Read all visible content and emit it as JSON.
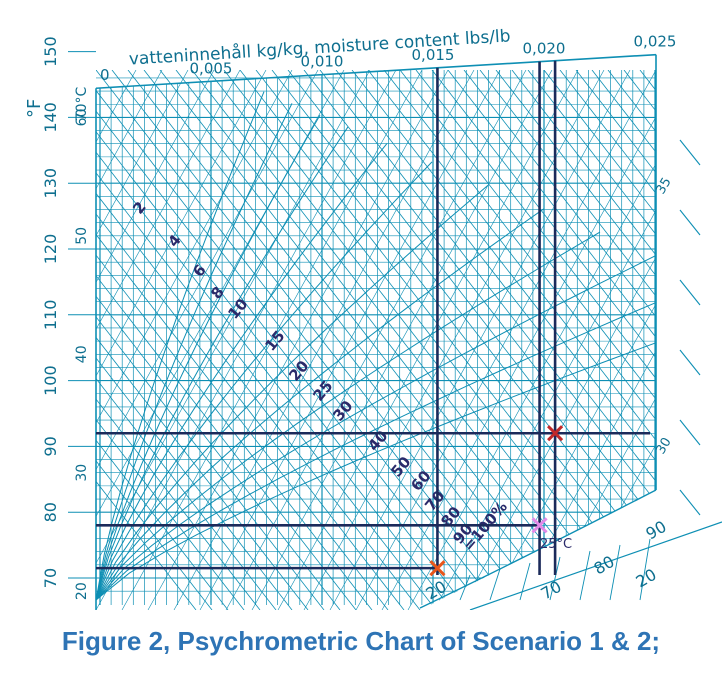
{
  "caption": "Figure 2, Psychrometric Chart of Scenario 1 & 2;",
  "chart_data": {
    "type": "psychrometric",
    "xlabel": "vatteninnehåll kg/kg,  moisture content lbs/lb",
    "x_ticks": [
      "0",
      "0,005",
      "0,010",
      "0,015",
      "0,020",
      "0,025"
    ],
    "xlim": [
      0,
      0.025
    ],
    "ylabel_left": "°F",
    "f_ticks": [
      "70",
      "80",
      "90",
      "100",
      "110",
      "120",
      "130",
      "140",
      "150"
    ],
    "c_ticks": [
      "20",
      "30",
      "40",
      "50",
      "60",
      "70°C"
    ],
    "rh_labels": [
      "2",
      "4",
      "6",
      "8",
      "10",
      "15",
      "20",
      "25",
      "30",
      "40",
      "50",
      "60",
      "70",
      "80",
      "90",
      "=100%"
    ],
    "wet_bulb_label": "25°C",
    "right_labels": [
      "35",
      "30"
    ],
    "bottom_right_labels": [
      "90",
      "80",
      "70",
      "20",
      "20"
    ],
    "colors": {
      "grid": "#0e8fb4",
      "marker_lines": "#1b2a5a",
      "caption": "#2e74b5",
      "point_1": "#e8561b",
      "point_2": "#e28ae8",
      "point_3": "#c0282a"
    },
    "vertical_lines": [
      0.0152,
      0.0198,
      0.0205
    ],
    "horizontal_lines_F": [
      71.5,
      78,
      92
    ],
    "points": [
      {
        "x": 0.0152,
        "f": 71.5,
        "marker": "x",
        "color": "#e8561b"
      },
      {
        "x": 0.0198,
        "f": 78,
        "marker": "x",
        "color": "#e28ae8"
      },
      {
        "x": 0.0205,
        "f": 92,
        "marker": "x",
        "color": "#c0282a"
      }
    ]
  }
}
